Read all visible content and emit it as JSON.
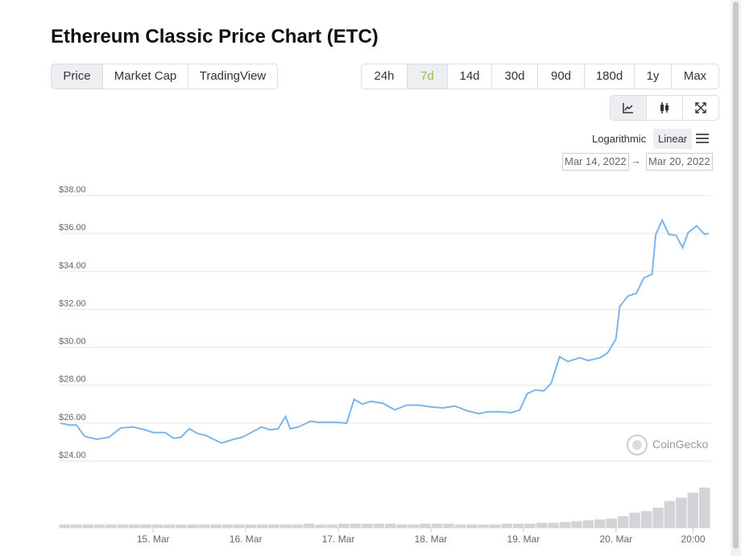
{
  "header": {
    "title": "Ethereum Classic Price Chart (ETC)"
  },
  "tabs": [
    {
      "label": "Price",
      "active": true
    },
    {
      "label": "Market Cap"
    },
    {
      "label": "TradingView"
    }
  ],
  "ranges": [
    {
      "label": "24h"
    },
    {
      "label": "7d",
      "active": true
    },
    {
      "label": "14d"
    },
    {
      "label": "30d"
    },
    {
      "label": "90d"
    },
    {
      "label": "180d"
    },
    {
      "label": "1y"
    },
    {
      "label": "Max"
    }
  ],
  "scale_options": [
    {
      "label": "Logarithmic"
    },
    {
      "label": "Linear",
      "active": true
    }
  ],
  "date_range": {
    "from": "Mar 14, 2022",
    "separator": "→",
    "to": "Mar 20, 2022"
  },
  "watermark": "CoinGecko",
  "chart_data": {
    "type": "line",
    "color": "#7cb5ec",
    "grid": true,
    "x": [
      0,
      0.09,
      0.17,
      0.26,
      0.39,
      0.52,
      0.65,
      0.78,
      0.91,
      1.0,
      1.13,
      1.22,
      1.3,
      1.39,
      1.48,
      1.57,
      1.65,
      1.74,
      1.87,
      1.96,
      2.04,
      2.17,
      2.26,
      2.35,
      2.43,
      2.48,
      2.57,
      2.7,
      2.78,
      2.87,
      2.96,
      3.09,
      3.17,
      3.26,
      3.35,
      3.48,
      3.61,
      3.74,
      3.87,
      4.0,
      4.13,
      4.26,
      4.39,
      4.52,
      4.61,
      4.74,
      4.87,
      4.96,
      5.04,
      5.13,
      5.22,
      5.3,
      5.39,
      5.48,
      5.61,
      5.7,
      5.83,
      5.91,
      6.0,
      6.04,
      6.13,
      6.22,
      6.3,
      6.39,
      6.43,
      6.5,
      6.57,
      6.65,
      6.72,
      6.78,
      6.87,
      6.96,
      7.0
    ],
    "values": [
      26.0,
      25.9,
      25.9,
      25.3,
      25.15,
      25.25,
      25.75,
      25.8,
      25.65,
      25.5,
      25.5,
      25.2,
      25.25,
      25.7,
      25.45,
      25.35,
      25.15,
      24.95,
      25.15,
      25.25,
      25.45,
      25.8,
      25.65,
      25.7,
      26.35,
      25.7,
      25.8,
      26.1,
      26.05,
      26.05,
      26.05,
      26.0,
      27.25,
      27.0,
      27.15,
      27.05,
      26.7,
      26.95,
      26.95,
      26.85,
      26.8,
      26.9,
      26.65,
      26.5,
      26.6,
      26.6,
      26.55,
      26.7,
      27.55,
      27.75,
      27.7,
      28.1,
      29.5,
      29.25,
      29.45,
      29.3,
      29.45,
      29.7,
      30.45,
      32.15,
      32.7,
      32.85,
      33.65,
      33.85,
      35.95,
      36.7,
      35.95,
      35.9,
      35.25,
      36.05,
      36.4,
      35.95,
      36.0
    ],
    "xlim": [
      -0.02,
      7.02
    ],
    "xticks": [
      {
        "value": 1,
        "label": "15. Mar"
      },
      {
        "value": 2,
        "label": "16. Mar"
      },
      {
        "value": 3,
        "label": "17. Mar"
      },
      {
        "value": 4,
        "label": "18. Mar"
      },
      {
        "value": 5,
        "label": "19. Mar"
      },
      {
        "value": 6,
        "label": "20. Mar"
      },
      {
        "value": 6.833,
        "label": "20:00"
      }
    ],
    "ylim": [
      24,
      38
    ],
    "yticks": [
      {
        "value": 24,
        "label": "$24.00"
      },
      {
        "value": 26,
        "label": "$26.00"
      },
      {
        "value": 28,
        "label": "$28.00"
      },
      {
        "value": 30,
        "label": "$30.00"
      },
      {
        "value": 32,
        "label": "$32.00"
      },
      {
        "value": 34,
        "label": "$34.00"
      },
      {
        "value": 36,
        "label": "$36.00"
      },
      {
        "value": 38,
        "label": "$38.00"
      }
    ],
    "volume": {
      "color": "#d4d4d8",
      "values": [
        4,
        4,
        4,
        4,
        4,
        4,
        4,
        4,
        4,
        4,
        4,
        4,
        4,
        4,
        4,
        4,
        4,
        4,
        4,
        4,
        4,
        5,
        4,
        4,
        5,
        5,
        5,
        5,
        5,
        4,
        4,
        5,
        5,
        5,
        4,
        4,
        4,
        4,
        5,
        5,
        5,
        6,
        6,
        7,
        8,
        9,
        10,
        11,
        14,
        18,
        20,
        24,
        32,
        36,
        42,
        48
      ]
    }
  }
}
